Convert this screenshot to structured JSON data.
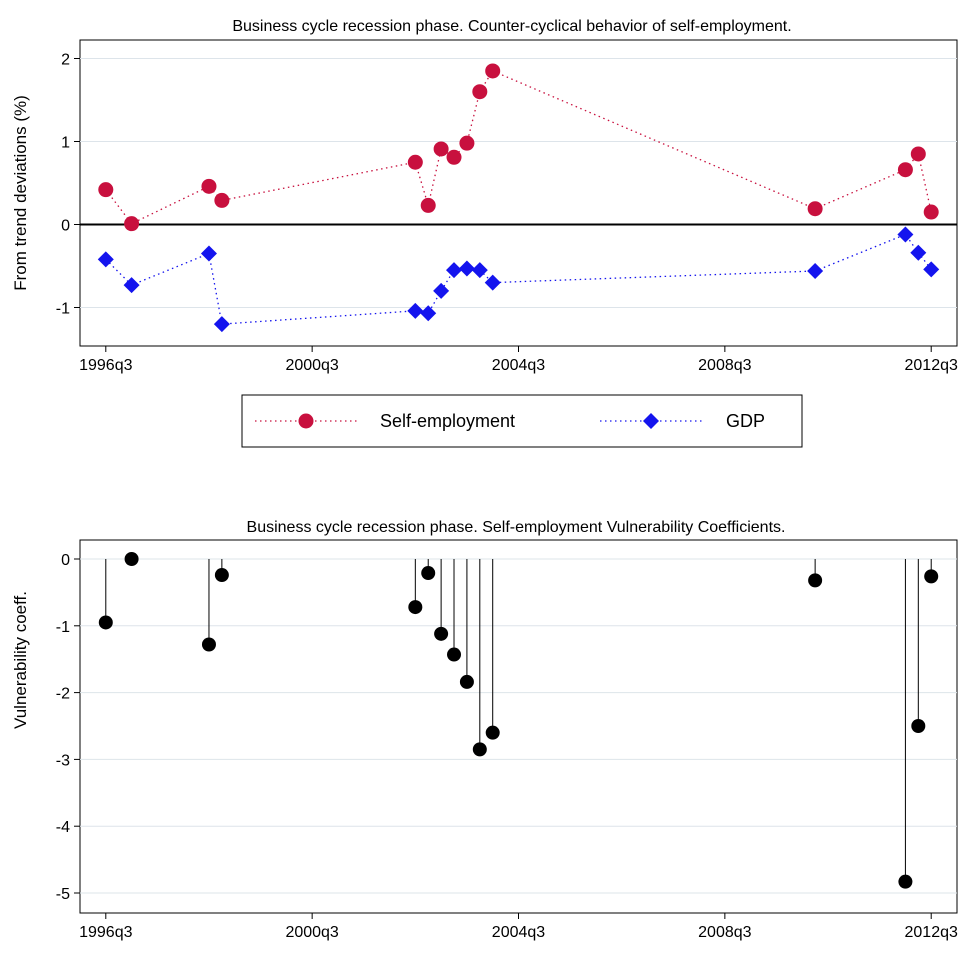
{
  "chart_data": [
    {
      "type": "line",
      "title": "Business cycle recession phase. Counter-cyclical behavior of self-employment.",
      "xlabel": "",
      "ylabel": "From trend deviations (%)",
      "x_tick_labels": [
        "1996q3",
        "2000q3",
        "2004q3",
        "2008q3",
        "2012q3"
      ],
      "x_tick_values": [
        1996.5,
        2000.5,
        2004.5,
        2008.5,
        2012.5
      ],
      "xlim": [
        1996.0,
        2013.0
      ],
      "y_ticks": [
        -1,
        0,
        1,
        2
      ],
      "ylim": [
        -1.45,
        2.2
      ],
      "reference_line_y": 0,
      "grid": "horizontal",
      "legend_position": "bottom",
      "series": [
        {
          "name": "Self-employment",
          "color": "#c8103e",
          "marker": "circle",
          "line_style": "dotted",
          "x": [
            1996.5,
            1997.0,
            1998.5,
            1998.75,
            2002.5,
            2002.75,
            2003.0,
            2003.25,
            2003.5,
            2003.75,
            2004.0,
            2010.25,
            2012.0,
            2012.25,
            2012.5
          ],
          "y": [
            0.42,
            0.01,
            0.46,
            0.29,
            0.75,
            0.23,
            0.91,
            0.81,
            0.98,
            1.6,
            1.85,
            0.19,
            0.66,
            0.85,
            0.15
          ]
        },
        {
          "name": "GDP",
          "color": "#1414ee",
          "marker": "diamond",
          "line_style": "dotted",
          "x": [
            1996.5,
            1997.0,
            1998.5,
            1998.75,
            2002.5,
            2002.75,
            2003.0,
            2003.25,
            2003.5,
            2003.75,
            2004.0,
            2010.25,
            2012.0,
            2012.25,
            2012.5
          ],
          "y": [
            -0.42,
            -0.73,
            -0.35,
            -1.2,
            -1.04,
            -1.07,
            -0.8,
            -0.55,
            -0.53,
            -0.55,
            -0.7,
            -0.56,
            -0.12,
            -0.34,
            -0.54
          ]
        }
      ]
    },
    {
      "type": "scatter",
      "subtype": "dropline",
      "title": "Business cycle recession phase. Self-employment Vulnerability Coefficients.",
      "xlabel": "",
      "ylabel": "Vulnerability coeff.",
      "x_tick_labels": [
        "1996q3",
        "2000q3",
        "2004q3",
        "2008q3",
        "2012q3"
      ],
      "x_tick_values": [
        1996.5,
        2000.5,
        2004.5,
        2008.5,
        2012.5
      ],
      "xlim": [
        1996.0,
        2013.0
      ],
      "y_ticks": [
        -5,
        -4,
        -3,
        -2,
        -1,
        0
      ],
      "ylim": [
        -5.25,
        0.2
      ],
      "grid": "horizontal",
      "color": "#000000",
      "x": [
        1996.5,
        1997.0,
        1998.5,
        1998.75,
        2002.5,
        2002.75,
        2003.0,
        2003.25,
        2003.5,
        2003.75,
        2004.0,
        2010.25,
        2012.0,
        2012.25,
        2012.5
      ],
      "y": [
        -0.95,
        0.0,
        -1.28,
        -0.24,
        -0.72,
        -0.21,
        -1.12,
        -1.43,
        -1.84,
        -2.85,
        -2.6,
        -0.32,
        -4.83,
        -2.5,
        -0.26
      ]
    }
  ]
}
